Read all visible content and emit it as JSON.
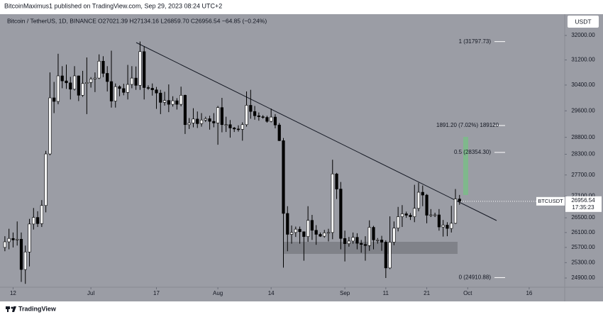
{
  "header": {
    "published": "BitcoinMaximus1 published on TradingView.com, Sep 29, 2023 08:24 UTC+2"
  },
  "footer": {
    "logo": "TradingView"
  },
  "chart_data": {
    "type": "candlestick",
    "symbol": "Bitcoin / TetherUS, 1D, BINANCE",
    "ohlc_legend": "O27021.39 H27134.16 L26859.70 C26956.54 −64.85 (−0.24%)",
    "currency": "USDT",
    "log_scale": true,
    "up_color": "#ffffff",
    "down_color": "#000000",
    "xlim": [
      -0.5,
      136.5
    ],
    "xticks": [
      {
        "value": 2,
        "label": "12"
      },
      {
        "value": 21,
        "label": "Jul"
      },
      {
        "value": 37,
        "label": "17"
      },
      {
        "value": 52,
        "label": "Aug"
      },
      {
        "value": 65,
        "label": "14"
      },
      {
        "value": 83,
        "label": "Sep"
      },
      {
        "value": 93,
        "label": "11"
      },
      {
        "value": 103,
        "label": "21"
      },
      {
        "value": 113,
        "label": "Oct"
      },
      {
        "value": 128,
        "label": "16"
      }
    ],
    "ylim": [
      24664,
      32712
    ],
    "yticks": [
      {
        "value": 32000,
        "label": "32000.00"
      },
      {
        "value": 31200,
        "label": "31200.00"
      },
      {
        "value": 30400,
        "label": "30400.00"
      },
      {
        "value": 29600,
        "label": "29600.00"
      },
      {
        "value": 28800,
        "label": "28800.00"
      },
      {
        "value": 28300,
        "label": "28300.00"
      },
      {
        "value": 27700,
        "label": "27700.00"
      },
      {
        "value": 27100,
        "label": "27100.00"
      },
      {
        "value": 26500,
        "label": "26500.00"
      },
      {
        "value": 26100,
        "label": "26100.00"
      },
      {
        "value": 25700,
        "label": "25700.00"
      },
      {
        "value": 25300,
        "label": "25300.00"
      },
      {
        "value": 24900,
        "label": "24900.00"
      }
    ],
    "open": [
      25700,
      25850,
      25940,
      25900,
      25920,
      25120,
      25580,
      26330,
      26510,
      26340,
      26840,
      28310,
      30000,
      29890,
      30690,
      30530,
      30470,
      30270,
      30690,
      30080,
      30450,
      30480,
      30590,
      30620,
      31160,
      30770,
      30510,
      29900,
      30350,
      30290,
      30170,
      30420,
      30620,
      30390,
      31470,
      30320,
      30300,
      30250,
      30150,
      29860,
      29920,
      29800,
      29910,
      29800,
      30080,
      29180,
      29230,
      29350,
      29210,
      29320,
      29360,
      29280,
      29230,
      29700,
      29180,
      29180,
      29080,
      29050,
      29040,
      29180,
      29770,
      29580,
      29450,
      29420,
      29400,
      29280,
      29410,
      29170,
      28700,
      26620,
      26050,
      26100,
      26190,
      26120,
      25990,
      26430,
      26160,
      26050,
      26000,
      26090,
      26100,
      27730,
      27300,
      25940,
      25800,
      25870,
      25970,
      25810,
      25780,
      25750,
      26240,
      25900,
      25900,
      25840,
      25160,
      25840,
      26220,
      26530,
      26610,
      26570,
      26530,
      26760,
      27210,
      27130,
      26570,
      26580,
      26580,
      26250,
      26300,
      26210,
      26350,
      27021.39
    ],
    "high": [
      26000,
      26200,
      26100,
      26400,
      26100,
      25750,
      26470,
      26770,
      26680,
      26990,
      28400,
      30800,
      30500,
      31400,
      31000,
      31050,
      30660,
      31000,
      30700,
      30850,
      31280,
      30650,
      30800,
      31380,
      31320,
      31000,
      31500,
      30450,
      30390,
      30440,
      31040,
      31000,
      30990,
      31800,
      31650,
      30390,
      30450,
      30340,
      30250,
      30190,
      30420,
      30050,
      29990,
      30350,
      30100,
      29380,
      29680,
      29580,
      29530,
      29420,
      29450,
      29530,
      29750,
      30000,
      29420,
      29320,
      29110,
      29160,
      29250,
      30200,
      30250,
      29750,
      29550,
      29470,
      29450,
      29670,
      29500,
      29230,
      28780,
      26820,
      26290,
      26260,
      26260,
      26130,
      26820,
      26580,
      26300,
      26100,
      26170,
      26200,
      28140,
      27760,
      27500,
      26150,
      25980,
      26100,
      26080,
      25900,
      26000,
      26430,
      26280,
      25950,
      26010,
      25890,
      26540,
      26400,
      26800,
      26850,
      26670,
      26630,
      27420,
      27480,
      27400,
      27160,
      26740,
      26640,
      26740,
      26440,
      26380,
      26830,
      27300,
      27134.16
    ],
    "low": [
      25600,
      25650,
      25700,
      25750,
      24800,
      24750,
      25200,
      26180,
      26250,
      26250,
      26650,
      28270,
      29530,
      29800,
      30300,
      30280,
      29950,
      30230,
      29900,
      30030,
      29500,
      30320,
      30180,
      30590,
      30650,
      30200,
      29700,
      29700,
      30050,
      30080,
      29950,
      30300,
      30250,
      30250,
      29950,
      30250,
      30070,
      29660,
      29500,
      29760,
      29560,
      29730,
      29640,
      29740,
      28900,
      29050,
      29100,
      29080,
      29120,
      29260,
      29030,
      29100,
      28580,
      28950,
      28960,
      28790,
      28960,
      28970,
      28700,
      29120,
      29360,
      29330,
      29300,
      29360,
      29240,
      29250,
      29070,
      28690,
      25170,
      25600,
      25800,
      25980,
      25800,
      25350,
      25850,
      25900,
      25770,
      25980,
      25960,
      25860,
      25920,
      27020,
      25650,
      25330,
      25720,
      25800,
      25650,
      25560,
      25350,
      25610,
      25650,
      25800,
      25610,
      24900,
      25130,
      25760,
      26130,
      26250,
      26500,
      26440,
      26380,
      26680,
      26820,
      26350,
      26520,
      26520,
      26150,
      25990,
      26000,
      26100,
      26330,
      26859.7
    ],
    "close": [
      25850,
      25940,
      25900,
      25920,
      25120,
      25580,
      26330,
      26510,
      26340,
      26840,
      28310,
      30000,
      29890,
      30690,
      30530,
      30470,
      30270,
      30690,
      30080,
      30450,
      30480,
      30590,
      30620,
      31160,
      30770,
      30510,
      29900,
      30350,
      30290,
      30170,
      30420,
      30620,
      30390,
      31470,
      30320,
      30300,
      30250,
      30150,
      29860,
      29920,
      29800,
      29910,
      29800,
      30080,
      29180,
      29230,
      29350,
      29210,
      29320,
      29360,
      29280,
      29230,
      29700,
      29180,
      29180,
      29080,
      29050,
      29040,
      29180,
      29770,
      29580,
      29450,
      29420,
      29400,
      29280,
      29410,
      29170,
      28700,
      26620,
      26050,
      26100,
      26190,
      26120,
      25990,
      26430,
      26160,
      26050,
      26000,
      26090,
      26100,
      27730,
      27300,
      25940,
      25800,
      25870,
      25970,
      25810,
      25780,
      25750,
      26240,
      25900,
      25900,
      25840,
      25160,
      25840,
      26220,
      26530,
      26610,
      26570,
      26530,
      26760,
      27210,
      27130,
      26570,
      26580,
      26580,
      26250,
      26300,
      26210,
      26350,
      27021.39,
      26956.54
    ],
    "fib_levels": [
      {
        "label": "1 (31797.73)",
        "value": 31797.73
      },
      {
        "label": "0.5 (28354.30)",
        "value": 28354.3
      },
      {
        "label": "0 (24910.88)",
        "value": 24910.88
      }
    ],
    "measure_label": "1891.20 (7.02%) 189120",
    "last_price": {
      "name": "BTCUSDT",
      "value": 26956.54,
      "countdown": "17:35:23"
    }
  }
}
